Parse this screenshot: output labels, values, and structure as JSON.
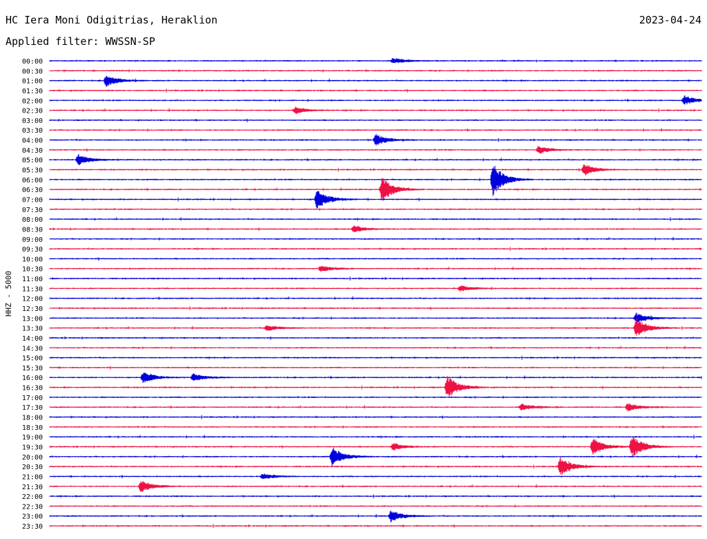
{
  "header": {
    "station": "HC Iera Moni Odigitrias, Heraklion",
    "date": "2023-04-24",
    "filter": "Applied filter: WWSSN-SP"
  },
  "chart_data": {
    "type": "line",
    "title": "HC Iera Moni Odigitrias, Heraklion",
    "ylabel": "HHZ - 5000",
    "grid": false,
    "legend": "none",
    "row_labels": [
      "00:00",
      "00:30",
      "01:00",
      "01:30",
      "02:00",
      "02:30",
      "03:00",
      "03:30",
      "04:00",
      "04:30",
      "05:00",
      "05:30",
      "06:00",
      "06:30",
      "07:00",
      "07:30",
      "08:00",
      "08:30",
      "09:00",
      "09:30",
      "10:00",
      "10:30",
      "11:00",
      "11:30",
      "12:00",
      "12:30",
      "13:00",
      "13:30",
      "14:00",
      "14:30",
      "15:00",
      "15:30",
      "16:00",
      "16:30",
      "17:00",
      "17:30",
      "18:00",
      "18:30",
      "19:00",
      "19:30",
      "20:00",
      "20:30",
      "21:00",
      "21:30",
      "22:00",
      "22:30",
      "23:00",
      "23:30"
    ],
    "trace_colors": [
      "#0000dd",
      "#ee1144"
    ],
    "minutes_per_row": 30,
    "events": [
      {
        "row": 0,
        "minute": 15.8,
        "amplitude": 0.3
      },
      {
        "row": 2,
        "minute": 2.6,
        "amplitude": 0.6
      },
      {
        "row": 4,
        "minute": 29.2,
        "amplitude": 0.5
      },
      {
        "row": 5,
        "minute": 11.3,
        "amplitude": 0.35
      },
      {
        "row": 8,
        "minute": 15.0,
        "amplitude": 0.6
      },
      {
        "row": 9,
        "minute": 22.5,
        "amplitude": 0.4
      },
      {
        "row": 10,
        "minute": 1.3,
        "amplitude": 0.6
      },
      {
        "row": 11,
        "minute": 24.6,
        "amplitude": 0.6
      },
      {
        "row": 12,
        "minute": 20.4,
        "amplitude": 1.7
      },
      {
        "row": 13,
        "minute": 15.3,
        "amplitude": 1.3
      },
      {
        "row": 14,
        "minute": 12.3,
        "amplitude": 1.0
      },
      {
        "row": 17,
        "minute": 14.0,
        "amplitude": 0.35
      },
      {
        "row": 21,
        "minute": 12.5,
        "amplitude": 0.3
      },
      {
        "row": 23,
        "minute": 18.9,
        "amplitude": 0.3
      },
      {
        "row": 26,
        "minute": 27.0,
        "amplitude": 0.5
      },
      {
        "row": 27,
        "minute": 27.0,
        "amplitude": 1.0
      },
      {
        "row": 27,
        "minute": 10.0,
        "amplitude": 0.3
      },
      {
        "row": 32,
        "minute": 4.3,
        "amplitude": 0.6
      },
      {
        "row": 32,
        "minute": 6.6,
        "amplitude": 0.4
      },
      {
        "row": 33,
        "minute": 18.3,
        "amplitude": 1.2
      },
      {
        "row": 35,
        "minute": 21.7,
        "amplitude": 0.35
      },
      {
        "row": 35,
        "minute": 26.6,
        "amplitude": 0.4
      },
      {
        "row": 39,
        "minute": 15.8,
        "amplitude": 0.4
      },
      {
        "row": 39,
        "minute": 25.0,
        "amplitude": 0.9
      },
      {
        "row": 39,
        "minute": 26.8,
        "amplitude": 1.2
      },
      {
        "row": 40,
        "minute": 13.0,
        "amplitude": 1.0
      },
      {
        "row": 41,
        "minute": 23.5,
        "amplitude": 1.0
      },
      {
        "row": 42,
        "minute": 9.8,
        "amplitude": 0.3
      },
      {
        "row": 43,
        "minute": 4.2,
        "amplitude": 0.6
      },
      {
        "row": 46,
        "minute": 15.7,
        "amplitude": 0.6
      }
    ]
  }
}
